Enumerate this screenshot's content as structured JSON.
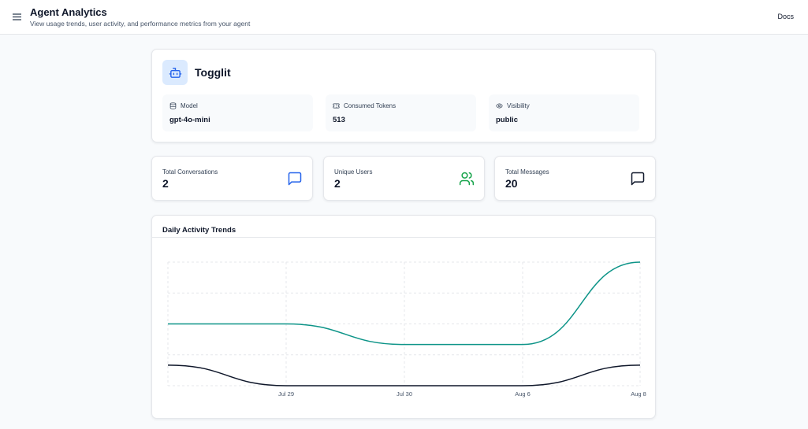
{
  "header": {
    "title": "Agent Analytics",
    "subtitle": "View usage trends, user activity, and performance metrics from your agent",
    "docs_label": "Docs"
  },
  "agent": {
    "name": "Togglit",
    "icon": "bot-icon",
    "model_label": "Model",
    "model_value": "gpt-4o-mini",
    "tokens_label": "Consumed Tokens",
    "tokens_value": "513",
    "visibility_label": "Visibility",
    "visibility_value": "public"
  },
  "stats": {
    "conversations_label": "Total Conversations",
    "conversations_value": "2",
    "users_label": "Unique Users",
    "users_value": "2",
    "messages_label": "Total Messages",
    "messages_value": "20"
  },
  "colors": {
    "teal_series": "#0d9488",
    "navy_series": "#0f172a",
    "conversations_icon": "#2563eb",
    "users_icon": "#16a34a"
  },
  "chart_data": {
    "type": "line",
    "title": "Daily Activity Trends",
    "categories": [
      "Jul 29",
      "Jul 30",
      "Aug 6",
      "Aug 8"
    ],
    "x_positions": [
      0,
      1,
      2,
      3
    ],
    "start": {
      "y1": 6,
      "y2": 2
    },
    "series": [
      {
        "values": [
          6,
          4,
          4,
          12
        ],
        "color": "#0d9488"
      },
      {
        "values": [
          0,
          0,
          0,
          2
        ],
        "color": "#0f172a"
      }
    ],
    "ylim": [
      0,
      12
    ],
    "grid": true
  }
}
